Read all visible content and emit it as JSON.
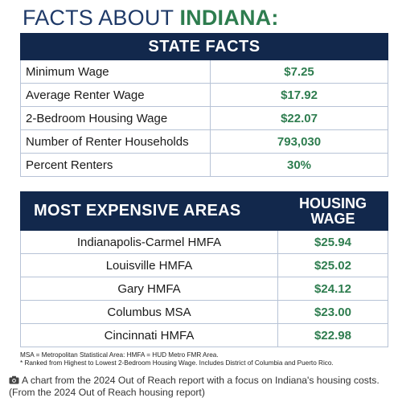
{
  "title": {
    "prefix": "FACTS ABOUT ",
    "state": "INDIANA:"
  },
  "state_facts": {
    "header": "STATE FACTS",
    "rows": [
      {
        "label": "Minimum Wage",
        "value": "$7.25"
      },
      {
        "label": "Average Renter Wage",
        "value": "$17.92"
      },
      {
        "label": "2-Bedroom Housing Wage",
        "value": "$22.07"
      },
      {
        "label": "Number of Renter Households",
        "value": "793,030"
      },
      {
        "label": "Percent Renters",
        "value": "30%"
      }
    ]
  },
  "expensive_areas": {
    "header_area": "MOST EXPENSIVE AREAS",
    "header_wage_line1": "HOUSING",
    "header_wage_line2": "WAGE",
    "rows": [
      {
        "label": "Indianapolis-Carmel HMFA",
        "value": "$25.94"
      },
      {
        "label": "Louisville HMFA",
        "value": "$25.02"
      },
      {
        "label": "Gary HMFA",
        "value": "$24.12"
      },
      {
        "label": "Columbus MSA",
        "value": "$23.00"
      },
      {
        "label": "Cincinnati HMFA",
        "value": "$22.98"
      }
    ]
  },
  "footnotes": {
    "line1": "MSA = Metropolitan Statistical Area: HMFA = HUD Metro FMR Area.",
    "line2": "* Ranked from Highest to Lowest 2-Bedroom Housing Wage. Includes District of Columbia and Puerto Rico."
  },
  "caption": {
    "icon": "camera-icon",
    "text": "A chart from the 2024 Out of Reach report with a focus on Indiana's housing costs. (From the 2024 Out of Reach housing report)"
  },
  "colors": {
    "navy": "#12284c",
    "title_blue": "#1f3a68",
    "green": "#2e7d4f",
    "border": "#b7c3d6"
  }
}
